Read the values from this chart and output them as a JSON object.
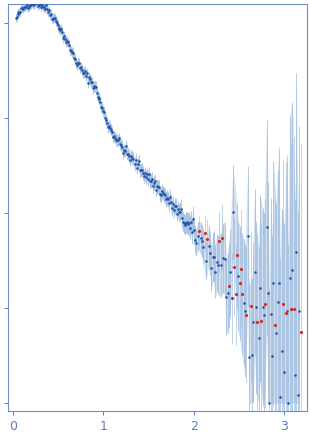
{
  "title": "",
  "xlabel": "",
  "ylabel": "",
  "xlim": [
    -0.05,
    3.25
  ],
  "x_ticks": [
    0,
    1,
    2,
    3
  ],
  "figsize": [
    3.11,
    4.37
  ],
  "dpi": 100,
  "blue_color": "#2255aa",
  "red_color": "#dd2222",
  "error_color": "#99b8dd",
  "bg_color": "#ffffff",
  "axis_color": "#7090cc",
  "tick_color": "#6080bb"
}
